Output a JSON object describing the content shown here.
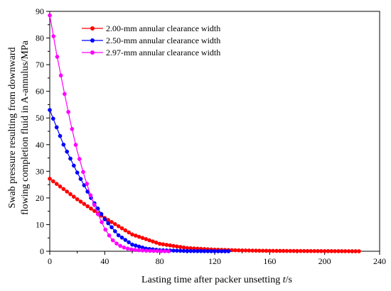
{
  "chart_data": {
    "type": "line",
    "xlabel_main": "Lasting time after packer unsetting ",
    "xlabel_var": "t",
    "xlabel_unit": "/s",
    "ylabel_line1": "Swab pressure resulting from downward",
    "ylabel_line2": "flowing completion fluid in A-annulus/MPa",
    "xlim": [
      0,
      240
    ],
    "ylim": [
      0,
      90
    ],
    "xticks": [
      "0",
      "40",
      "80",
      "120",
      "160",
      "200",
      "240"
    ],
    "yticks": [
      "0",
      "10",
      "20",
      "30",
      "40",
      "50",
      "60",
      "70",
      "80",
      "90"
    ],
    "legend_position": "top-left",
    "series": [
      {
        "name": "2.00-mm annular clearance width",
        "color": "#ff0000",
        "x": [
          0,
          20,
          40,
          60,
          80,
          100,
          120,
          140,
          160,
          180,
          200,
          225
        ],
        "y": [
          27.2,
          19.5,
          12.5,
          6.3,
          2.8,
          1.2,
          0.6,
          0.3,
          0.15,
          0.1,
          0.05,
          0.0
        ]
      },
      {
        "name": "2.50-mm annular clearance width",
        "color": "#0000ff",
        "x": [
          0,
          10,
          20,
          30,
          40,
          50,
          60,
          70,
          80,
          100,
          120,
          132
        ],
        "y": [
          53.0,
          40.0,
          29.5,
          20.0,
          12.0,
          6.0,
          2.5,
          1.0,
          0.4,
          0.1,
          0.0,
          0.0
        ]
      },
      {
        "name": "2.97-mm annular clearance width",
        "color": "#ff00ff",
        "x": [
          0,
          5,
          10,
          15,
          20,
          25,
          30,
          35,
          40,
          45,
          50,
          55,
          60,
          70,
          80,
          88
        ],
        "y": [
          88.5,
          74.0,
          61.0,
          48.5,
          37.5,
          28.5,
          20.5,
          14.0,
          8.5,
          4.5,
          2.3,
          1.2,
          0.6,
          0.2,
          0.05,
          0.0
        ]
      }
    ]
  }
}
